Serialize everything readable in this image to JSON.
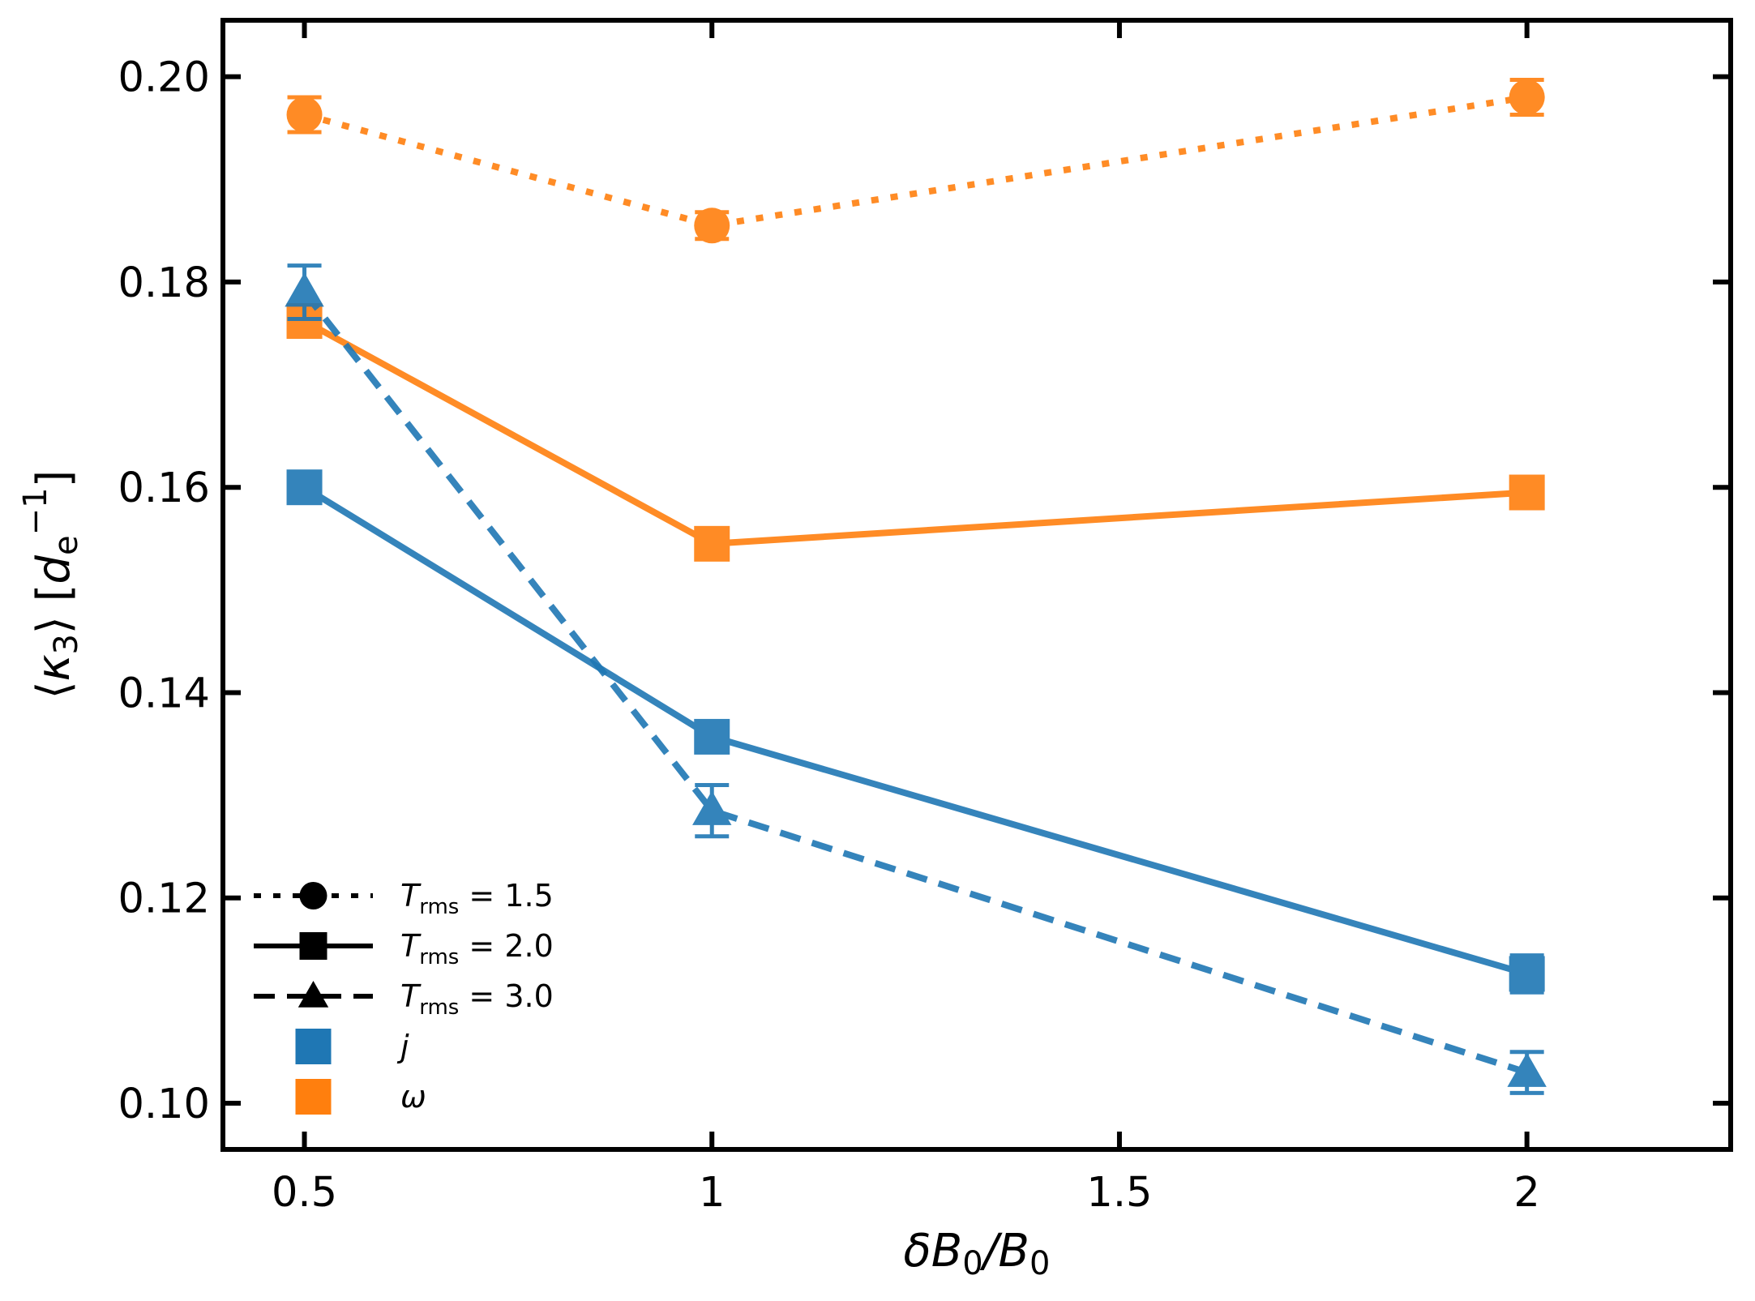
{
  "chart_data": {
    "type": "line",
    "title": "",
    "xlabel": "δB₀/B₀",
    "ylabel": "⟨κ₃⟩ [dₑ⁻¹]",
    "xlim": [
      0.4,
      2.25
    ],
    "ylim": [
      0.0955,
      0.2055
    ],
    "x_ticks": [
      {
        "value": 0.5,
        "label": "0.5"
      },
      {
        "value": 1.0,
        "label": "1"
      },
      {
        "value": 1.5,
        "label": "1.5"
      },
      {
        "value": 2.0,
        "label": "2"
      }
    ],
    "y_ticks": [
      {
        "value": 0.1,
        "label": "0.10"
      },
      {
        "value": 0.12,
        "label": "0.12"
      },
      {
        "value": 0.14,
        "label": "0.14"
      },
      {
        "value": 0.16,
        "label": "0.16"
      },
      {
        "value": 0.18,
        "label": "0.18"
      },
      {
        "value": 0.2,
        "label": "0.20"
      }
    ],
    "colors": {
      "j": "#1f77b4",
      "omega": "#ff7f0e"
    },
    "series": [
      {
        "name": "ω, T_rms = 1.5",
        "quantity": "omega",
        "trms": "1.5",
        "linestyle": "dotted",
        "marker": "circle",
        "x": [
          0.5,
          1.0,
          2.0
        ],
        "y": [
          0.1963,
          0.1855,
          0.198
        ],
        "err": [
          0.0017,
          0.0013,
          0.0017
        ]
      },
      {
        "name": "ω, T_rms = 2.0",
        "quantity": "omega",
        "trms": "2.0",
        "linestyle": "solid",
        "marker": "square",
        "x": [
          0.5,
          1.0,
          2.0
        ],
        "y": [
          0.1762,
          0.1545,
          0.1595
        ],
        "err": [
          0.0008,
          0.0008,
          0.0008
        ]
      },
      {
        "name": "j, T_rms = 2.0",
        "quantity": "j",
        "trms": "2.0",
        "linestyle": "solid",
        "marker": "square",
        "x": [
          0.5,
          1.0,
          2.0
        ],
        "y": [
          0.16,
          0.1357,
          0.1126
        ],
        "err": [
          0.0008,
          0.001,
          0.0018
        ]
      },
      {
        "name": "j, T_rms = 3.0",
        "quantity": "j",
        "trms": "3.0",
        "linestyle": "dashed",
        "marker": "triangle",
        "x": [
          0.5,
          1.0,
          2.0
        ],
        "y": [
          0.179,
          0.1285,
          0.103
        ],
        "err": [
          0.0026,
          0.0025,
          0.002
        ]
      }
    ],
    "legend": {
      "position": "lower-left",
      "entries": [
        {
          "kind": "line",
          "linestyle": "dotted",
          "marker": "circle",
          "prefix": "T",
          "sub": "rms",
          "suffix": " = 1.5"
        },
        {
          "kind": "line",
          "linestyle": "solid",
          "marker": "square",
          "prefix": "T",
          "sub": "rms",
          "suffix": " = 2.0"
        },
        {
          "kind": "line",
          "linestyle": "dashed",
          "marker": "triangle",
          "prefix": "T",
          "sub": "rms",
          "suffix": " = 3.0"
        },
        {
          "kind": "color",
          "quantity": "j",
          "label": "j"
        },
        {
          "kind": "color",
          "quantity": "omega",
          "label": "ω"
        }
      ]
    }
  }
}
